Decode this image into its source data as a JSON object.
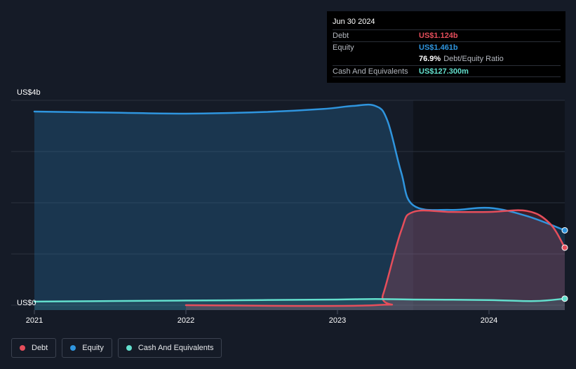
{
  "colors": {
    "debt": "#e64e5b",
    "equity": "#2f95de",
    "cash": "#63dfcd",
    "grid": "#2a303c",
    "axis_text": "#ffffff"
  },
  "tooltip": {
    "date": "Jun 30 2024",
    "rows": {
      "debt": {
        "label": "Debt",
        "value": "US$1.124b"
      },
      "equity": {
        "label": "Equity",
        "value": "US$1.461b"
      },
      "ratio": {
        "value": "76.9%",
        "text": "Debt/Equity Ratio"
      },
      "cash": {
        "label": "Cash And Equivalents",
        "value": "US$127.300m"
      }
    }
  },
  "legend": {
    "debt": "Debt",
    "equity": "Equity",
    "cash": "Cash And Equivalents"
  },
  "chart_data": {
    "type": "area",
    "title": "",
    "y_axis": {
      "unit": "US$ billions",
      "min": 0,
      "max": 4,
      "top_label": "US$4b",
      "bottom_label": "US$0"
    },
    "x_axis": {
      "min": 2021.0,
      "max": 2024.5,
      "ticks": [
        2021,
        2022,
        2023,
        2024
      ],
      "tick_labels": [
        "2021",
        "2022",
        "2023",
        "2024"
      ]
    },
    "highlight_from": 2023.5,
    "series": [
      {
        "name": "Equity",
        "key": "equity",
        "points": [
          [
            2021.0,
            3.78
          ],
          [
            2021.5,
            3.76
          ],
          [
            2022.0,
            3.74
          ],
          [
            2022.5,
            3.77
          ],
          [
            2022.9,
            3.83
          ],
          [
            2023.1,
            3.89
          ],
          [
            2023.25,
            3.89
          ],
          [
            2023.33,
            3.6
          ],
          [
            2023.42,
            2.6
          ],
          [
            2023.5,
            1.95
          ],
          [
            2023.75,
            1.86
          ],
          [
            2024.0,
            1.9
          ],
          [
            2024.25,
            1.74
          ],
          [
            2024.5,
            1.461
          ]
        ]
      },
      {
        "name": "Debt",
        "key": "debt",
        "points": [
          [
            2022.0,
            0.0
          ],
          [
            2023.25,
            0.0
          ],
          [
            2023.3,
            0.2
          ],
          [
            2023.42,
            1.45
          ],
          [
            2023.5,
            1.82
          ],
          [
            2023.75,
            1.82
          ],
          [
            2024.0,
            1.82
          ],
          [
            2024.25,
            1.84
          ],
          [
            2024.4,
            1.6
          ],
          [
            2024.5,
            1.124
          ]
        ]
      },
      {
        "name": "Cash And Equivalents",
        "key": "cash",
        "points": [
          [
            2021.0,
            0.07
          ],
          [
            2021.5,
            0.08
          ],
          [
            2022.0,
            0.09
          ],
          [
            2022.5,
            0.1
          ],
          [
            2023.0,
            0.11
          ],
          [
            2023.25,
            0.12
          ],
          [
            2023.5,
            0.11
          ],
          [
            2024.0,
            0.1
          ],
          [
            2024.3,
            0.08
          ],
          [
            2024.5,
            0.127
          ]
        ]
      }
    ]
  }
}
